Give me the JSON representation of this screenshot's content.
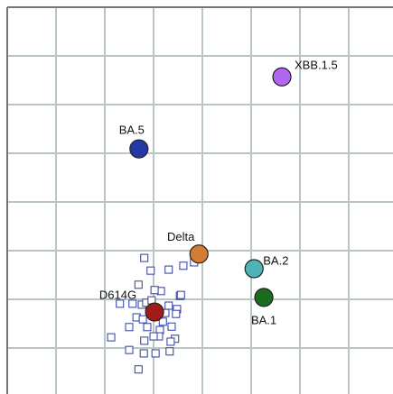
{
  "chart_data": {
    "type": "scatter",
    "xlim": [
      0,
      8
    ],
    "ylim": [
      0,
      8
    ],
    "xticks": [
      0,
      1,
      2,
      3,
      4,
      5,
      6,
      7,
      8
    ],
    "yticks": [
      0,
      1,
      2,
      3,
      4,
      5,
      6,
      7,
      8
    ],
    "grid": true,
    "antigens": [
      {
        "label": "XBB.1.5",
        "x": 5.63,
        "y": 6.57,
        "color": "#b267f2"
      },
      {
        "label": "BA.5",
        "x": 2.7,
        "y": 5.09,
        "color": "#2438a6"
      },
      {
        "label": "Delta",
        "x": 3.93,
        "y": 2.93,
        "color": "#d27c34"
      },
      {
        "label": "BA.2",
        "x": 5.06,
        "y": 2.63,
        "color": "#4fb3b5"
      },
      {
        "label": "BA.1",
        "x": 5.26,
        "y": 2.04,
        "color": "#1b6b1f"
      },
      {
        "label": "D614G",
        "x": 3.02,
        "y": 1.74,
        "color": "#a31a1a"
      }
    ],
    "sera": {
      "color": "#2c3c9c",
      "x": [
        2.81,
        2.94,
        3.31,
        3.61,
        3.83,
        2.69,
        3.15,
        3.54,
        3.02,
        2.31,
        2.57,
        2.76,
        2.85,
        2.96,
        3.31,
        3.48,
        3.24,
        2.65,
        2.78,
        3.19,
        3.46,
        2.5,
        2.87,
        3.13,
        3.37,
        2.13,
        2.81,
        3.11,
        3.44,
        3.35,
        2.5,
        2.8,
        3.04,
        3.33,
        2.69,
        3.0,
        3.56
      ],
      "y": [
        2.85,
        2.59,
        2.61,
        2.69,
        2.76,
        2.3,
        2.17,
        2.07,
        2.19,
        1.91,
        1.91,
        1.89,
        1.93,
        1.98,
        1.87,
        1.8,
        1.72,
        1.63,
        1.59,
        1.54,
        1.7,
        1.43,
        1.43,
        1.37,
        1.44,
        1.22,
        1.15,
        1.24,
        1.19,
        1.13,
        0.96,
        0.89,
        0.89,
        0.93,
        0.56,
        1.24,
        2.09
      ]
    }
  }
}
